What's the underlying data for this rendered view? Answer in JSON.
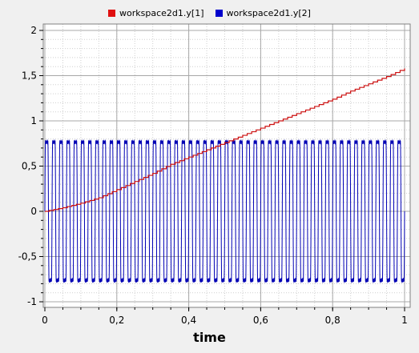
{
  "chart_data": {
    "type": "line",
    "xlabel": "time",
    "ylabel": "",
    "xlim": [
      0,
      1
    ],
    "ylim": [
      -1.1,
      2.1
    ],
    "x_ticks": [
      0,
      0.2,
      0.4,
      0.6,
      0.8,
      1
    ],
    "x_tick_labels": [
      "0",
      "0,2",
      "0,4",
      "0,6",
      "0,8",
      "1"
    ],
    "y_ticks": [
      -1,
      -0.5,
      0,
      0.5,
      1,
      1.5,
      2
    ],
    "y_tick_labels": [
      "-1",
      "-0,5",
      "0",
      "0,5",
      "1",
      "1,5",
      "2"
    ],
    "grid": true,
    "legend_position": "top-center",
    "series": [
      {
        "name": "workspace2d1.y[1]",
        "color": "#cc1010",
        "style": "staircase",
        "x": [
          0,
          0.05,
          0.1,
          0.15,
          0.2,
          0.25,
          0.3,
          0.35,
          0.4,
          0.45,
          0.5,
          0.55,
          0.6,
          0.65,
          0.7,
          0.75,
          0.8,
          0.85,
          0.9,
          0.95,
          1.0
        ],
        "y": [
          0.0,
          0.04,
          0.09,
          0.15,
          0.24,
          0.33,
          0.42,
          0.52,
          0.6,
          0.68,
          0.76,
          0.84,
          0.92,
          1.0,
          1.08,
          1.16,
          1.24,
          1.33,
          1.41,
          1.49,
          1.58
        ]
      },
      {
        "name": "workspace2d1.y[2]",
        "color": "#0000b4",
        "style": "oscillation",
        "amplitude": 0.78,
        "cycles": 50
      }
    ]
  },
  "legend": {
    "series1_label": "workspace2d1.y[1]",
    "series2_label": "workspace2d1.y[2]",
    "series1_color": "#e01010",
    "series2_color": "#0000cc"
  }
}
